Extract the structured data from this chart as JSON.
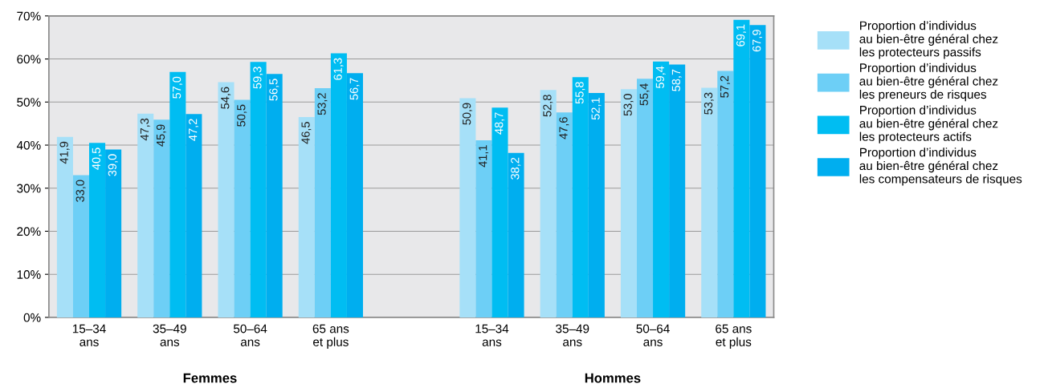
{
  "chart_data": {
    "type": "bar",
    "categories": [
      "15–34\nans",
      "35–49\nans",
      "50–64\nans",
      "65 ans\net plus",
      null,
      "15–34\nans",
      "35–49\nans",
      "50–64\nans",
      "65 ans\net plus"
    ],
    "series": [
      {
        "name": "Proportion d’individus\nau bien-être général chez\nles protecteurs passifs",
        "color": "#a6e0f8",
        "values": [
          41.9,
          47.3,
          54.6,
          46.5,
          null,
          50.9,
          52.8,
          53.0,
          53.3
        ],
        "value_labels": [
          "41,9",
          "47,3",
          "54,6",
          "46,5",
          null,
          "50,9",
          "52,8",
          "53,0",
          "53,3"
        ]
      },
      {
        "name": "Proportion d’individus\nau bien-être général chez\nles preneurs de risques",
        "color": "#6dcff6",
        "values": [
          33.0,
          45.9,
          50.5,
          53.2,
          null,
          41.1,
          47.6,
          55.4,
          57.2
        ],
        "value_labels": [
          "33,0",
          "45,9",
          "50,5",
          "53,2",
          null,
          "41,1",
          "47,6",
          "55,4",
          "57,2"
        ]
      },
      {
        "name": "Proportion d’individus\nau bien-être général chez\nles protecteurs actifs",
        "color": "#00bdf2",
        "values": [
          40.5,
          57.0,
          59.3,
          61.3,
          null,
          48.7,
          55.8,
          59.4,
          69.1
        ],
        "value_labels": [
          "40,5",
          "57,0",
          "59,3",
          "61,3",
          null,
          "48,7",
          "55,8",
          "59,4",
          "69,1"
        ]
      },
      {
        "name": "Proportion d’individus\nau bien-être général chez\nles compensateurs de risques",
        "color": "#00aeef",
        "values": [
          39.0,
          47.2,
          56.5,
          56.7,
          null,
          38.2,
          52.1,
          58.7,
          67.9
        ],
        "value_labels": [
          "39,0",
          "47,2",
          "56,5",
          "56,7",
          null,
          "38,2",
          "52,1",
          "58,7",
          "67,9"
        ]
      }
    ],
    "ylim": [
      0,
      70
    ],
    "yticks": [
      {
        "value": 0,
        "label": "0%"
      },
      {
        "value": 10,
        "label": "10%"
      },
      {
        "value": 20,
        "label": "20%"
      },
      {
        "value": 30,
        "label": "30%"
      },
      {
        "value": 40,
        "label": "40%"
      },
      {
        "value": 50,
        "label": "50%"
      },
      {
        "value": 60,
        "label": "60%"
      },
      {
        "value": 70,
        "label": "70%"
      }
    ],
    "grid": "y",
    "legend": "right",
    "annotations": [
      "Femmes",
      "Hommes"
    ]
  }
}
